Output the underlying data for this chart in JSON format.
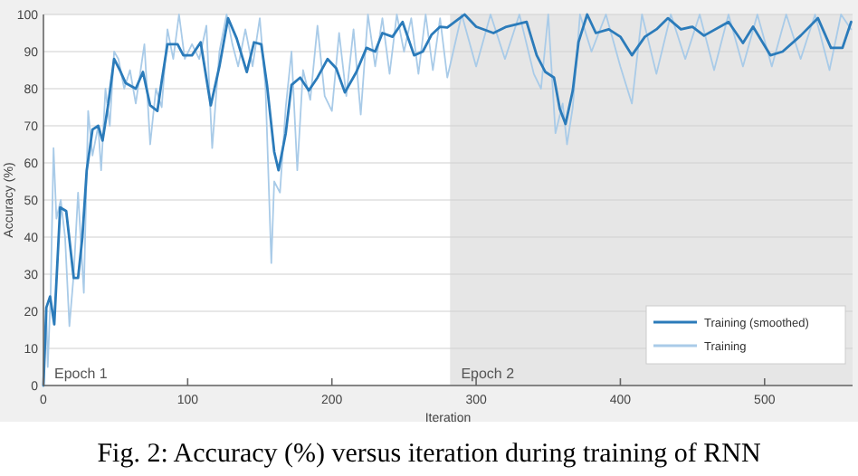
{
  "chart_data": {
    "type": "line",
    "xlabel": "Iteration",
    "ylabel": "Accuracy (%)",
    "annotations": [
      "Fig. 2: Accuracy (%) versus iteration during training of RNN"
    ],
    "xlim": [
      0,
      561
    ],
    "xticks": [
      0,
      100,
      200,
      300,
      400,
      500
    ],
    "ylim": [
      0,
      100
    ],
    "yticks": [
      0,
      10,
      20,
      30,
      40,
      50,
      60,
      70,
      80,
      90,
      100
    ],
    "grid": "y",
    "legend": "bottom right",
    "line_style": "solid",
    "bands": [
      {
        "axis": "x",
        "from": 0,
        "to": 282,
        "label": "Epoch 1",
        "color": "#ffffff"
      },
      {
        "axis": "x",
        "from": 282,
        "to": 561,
        "label": "Epoch 2",
        "color": "#e6e6e6"
      }
    ],
    "series": [
      {
        "name": "Training",
        "color": "#a9cbe8",
        "x": [
          0,
          2,
          3,
          5,
          7,
          9,
          12,
          15,
          18,
          21,
          24,
          28,
          31,
          34,
          38,
          40,
          43,
          46,
          49,
          52,
          56,
          60,
          64,
          70,
          74,
          78,
          82,
          86,
          90,
          94,
          98,
          103,
          108,
          113,
          117,
          122,
          127,
          131,
          135,
          140,
          145,
          150,
          154,
          158,
          160,
          164,
          168,
          172,
          176,
          180,
          185,
          190,
          195,
          200,
          205,
          210,
          215,
          220,
          225,
          230,
          235,
          240,
          245,
          250,
          255,
          260,
          265,
          270,
          275,
          280,
          290,
          300,
          310,
          320,
          330,
          340,
          345,
          350,
          355,
          360,
          363,
          367,
          372,
          380,
          390,
          400,
          408,
          415,
          425,
          435,
          445,
          455,
          465,
          475,
          485,
          495,
          505,
          515,
          525,
          535,
          545,
          553,
          560
        ],
        "values": [
          0,
          20,
          5,
          25,
          64,
          45,
          50,
          40,
          16,
          30,
          52,
          25,
          74,
          62,
          70,
          58,
          80,
          70,
          90,
          88,
          80,
          85,
          76,
          92,
          65,
          80,
          75,
          96,
          88,
          100,
          88,
          92,
          88,
          97,
          64,
          90,
          100,
          92,
          86,
          96,
          86,
          99,
          80,
          33,
          55,
          52,
          75,
          90,
          58,
          85,
          77,
          97,
          78,
          74,
          95,
          78,
          96,
          73,
          100,
          86,
          99,
          84,
          100,
          90,
          99,
          84,
          100,
          85,
          99,
          83,
          100,
          86,
          100,
          88,
          100,
          84,
          80,
          100,
          68,
          76,
          65,
          75,
          100,
          90,
          100,
          86,
          76,
          100,
          84,
          100,
          88,
          100,
          85,
          100,
          86,
          100,
          86,
          100,
          88,
          100,
          85,
          100,
          96
        ]
      },
      {
        "name": "Training (smoothed)",
        "color": "#2b7bba",
        "x": [
          0,
          2,
          4.6,
          7.5,
          11.6,
          15.8,
          21,
          24,
          27,
          30,
          34,
          38,
          41,
          45,
          49,
          53,
          57,
          64,
          69,
          74,
          79,
          82,
          86,
          93,
          97,
          103,
          109,
          116,
          122,
          128,
          134,
          141,
          146,
          151,
          155,
          160,
          163,
          168,
          172,
          178,
          184,
          190,
          197,
          203,
          209,
          217,
          224,
          230,
          235,
          242,
          249,
          257,
          263,
          269,
          275,
          280,
          292,
          300,
          312,
          321,
          335,
          342,
          348,
          354,
          358,
          362,
          367,
          371,
          377,
          383,
          392,
          400,
          408,
          417,
          425,
          433,
          442,
          450,
          458,
          475,
          485,
          492,
          504,
          512.5,
          525,
          537,
          546,
          554,
          560
        ],
        "values": [
          0,
          21,
          24,
          16.5,
          48,
          47,
          29,
          29,
          40,
          58,
          69,
          70,
          66,
          76,
          88,
          85,
          81.5,
          80,
          84.5,
          75.5,
          74,
          82,
          92,
          92,
          89,
          89,
          92.5,
          75.5,
          86,
          99,
          93.5,
          84.5,
          92.5,
          92,
          81,
          63,
          58,
          68,
          81,
          83,
          79.5,
          83,
          88,
          85.5,
          79,
          84.5,
          91,
          90,
          95,
          94,
          98,
          89,
          90,
          94.5,
          96.7,
          96.5,
          100,
          96.7,
          95,
          96.7,
          98,
          89,
          84.5,
          83,
          74.6,
          70.5,
          79.5,
          92.6,
          100,
          95,
          96,
          94,
          89,
          94,
          96,
          99,
          96,
          96.7,
          94.3,
          98,
          92.3,
          96.7,
          89,
          90,
          94.3,
          99,
          91,
          91,
          98
        ]
      }
    ]
  }
}
